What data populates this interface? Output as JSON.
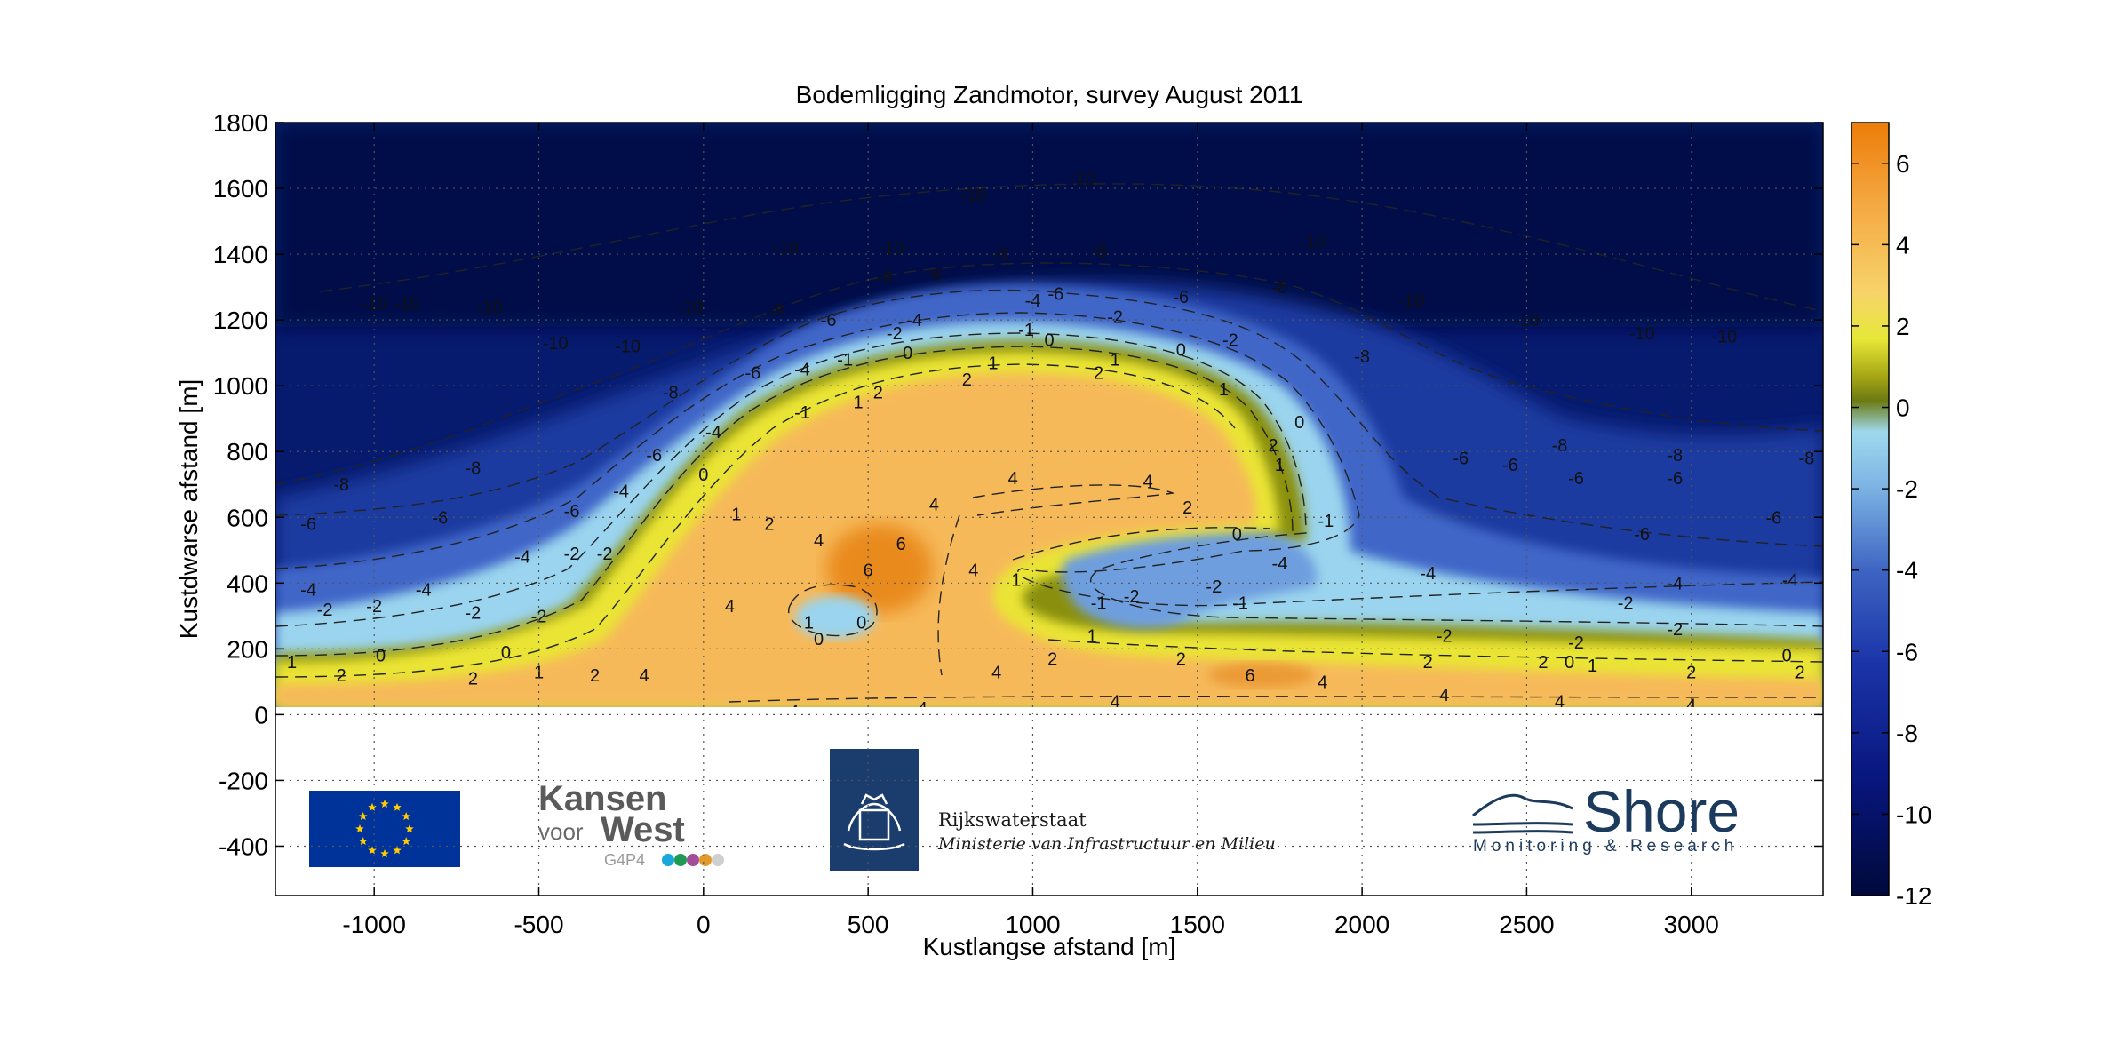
{
  "chart_data": {
    "type": "heatmap",
    "title": "Bodemligging Zandmotor, survey  August 2011",
    "xlabel": "Kustlangse afstand [m]",
    "ylabel": "Kustdwarse afstand [m]",
    "xlim": [
      -1300,
      3400
    ],
    "ylim": [
      -550,
      1800
    ],
    "xticks": [
      -1000,
      -500,
      0,
      500,
      1000,
      1500,
      2000,
      2500,
      3000
    ],
    "yticks": [
      -400,
      -200,
      0,
      200,
      400,
      600,
      800,
      1000,
      1200,
      1400,
      1600,
      1800
    ],
    "grid": "dotted",
    "colorbar": {
      "range": [
        -12,
        7
      ],
      "ticks": [
        6,
        4,
        2,
        0,
        -2,
        -4,
        -6,
        -8,
        -10,
        -12
      ],
      "colormap": [
        "#000c4a",
        "#061c8c",
        "#2a48b8",
        "#6a96d6",
        "#a6daf0",
        "#8a8a05",
        "#e8e830",
        "#f7c25e",
        "#ec8a10"
      ]
    },
    "contour_levels": [
      -10,
      -8,
      -6,
      -4,
      -2,
      -1,
      0,
      1,
      2,
      4,
      6
    ],
    "contour_labels": [
      {
        "x": -1000,
        "y": 1250,
        "v": -10
      },
      {
        "x": -900,
        "y": 1250,
        "v": -10
      },
      {
        "x": -650,
        "y": 1240,
        "v": -10
      },
      {
        "x": -450,
        "y": 1130,
        "v": -10
      },
      {
        "x": -230,
        "y": 1120,
        "v": -10
      },
      {
        "x": -40,
        "y": 1240,
        "v": -10
      },
      {
        "x": 250,
        "y": 1420,
        "v": -10
      },
      {
        "x": 570,
        "y": 1420,
        "v": -10
      },
      {
        "x": 820,
        "y": 1580,
        "v": -10
      },
      {
        "x": 1150,
        "y": 1630,
        "v": -10
      },
      {
        "x": 1850,
        "y": 1440,
        "v": -10
      },
      {
        "x": 2150,
        "y": 1260,
        "v": -10
      },
      {
        "x": 2500,
        "y": 1200,
        "v": -10
      },
      {
        "x": 2850,
        "y": 1160,
        "v": -10
      },
      {
        "x": 3100,
        "y": 1150,
        "v": -10
      },
      {
        "x": -1100,
        "y": 700,
        "v": -8
      },
      {
        "x": -700,
        "y": 750,
        "v": -8
      },
      {
        "x": -100,
        "y": 980,
        "v": -8
      },
      {
        "x": 220,
        "y": 1230,
        "v": -8
      },
      {
        "x": 550,
        "y": 1330,
        "v": -8
      },
      {
        "x": 900,
        "y": 1400,
        "v": -8
      },
      {
        "x": 1200,
        "y": 1410,
        "v": -8
      },
      {
        "x": 1750,
        "y": 1300,
        "v": -8
      },
      {
        "x": 2000,
        "y": 1090,
        "v": -8
      },
      {
        "x": 2600,
        "y": 820,
        "v": -8
      },
      {
        "x": 2950,
        "y": 790,
        "v": -8
      },
      {
        "x": 3350,
        "y": 780,
        "v": -8
      },
      {
        "x": -1200,
        "y": 580,
        "v": -6
      },
      {
        "x": -800,
        "y": 600,
        "v": -6
      },
      {
        "x": -400,
        "y": 620,
        "v": -6
      },
      {
        "x": -150,
        "y": 790,
        "v": -6
      },
      {
        "x": 150,
        "y": 1040,
        "v": -6
      },
      {
        "x": 380,
        "y": 1200,
        "v": -6
      },
      {
        "x": 700,
        "y": 1340,
        "v": -6
      },
      {
        "x": 1070,
        "y": 1280,
        "v": -6
      },
      {
        "x": 1450,
        "y": 1270,
        "v": -6
      },
      {
        "x": 2300,
        "y": 780,
        "v": -6
      },
      {
        "x": 2450,
        "y": 760,
        "v": -6
      },
      {
        "x": 2650,
        "y": 720,
        "v": -6
      },
      {
        "x": 2950,
        "y": 720,
        "v": -6
      },
      {
        "x": 3250,
        "y": 600,
        "v": -6
      },
      {
        "x": 2850,
        "y": 550,
        "v": -6
      },
      {
        "x": -1200,
        "y": 380,
        "v": -4
      },
      {
        "x": -850,
        "y": 380,
        "v": -4
      },
      {
        "x": -550,
        "y": 480,
        "v": -4
      },
      {
        "x": -250,
        "y": 680,
        "v": -4
      },
      {
        "x": 30,
        "y": 860,
        "v": -4
      },
      {
        "x": 300,
        "y": 1050,
        "v": -4
      },
      {
        "x": 640,
        "y": 1200,
        "v": -4
      },
      {
        "x": 1000,
        "y": 1260,
        "v": -4
      },
      {
        "x": 1750,
        "y": 460,
        "v": -4
      },
      {
        "x": 2200,
        "y": 430,
        "v": -4
      },
      {
        "x": 2950,
        "y": 400,
        "v": -4
      },
      {
        "x": 3300,
        "y": 410,
        "v": -4
      },
      {
        "x": -1150,
        "y": 320,
        "v": -2
      },
      {
        "x": -1000,
        "y": 330,
        "v": -2
      },
      {
        "x": -700,
        "y": 310,
        "v": -2
      },
      {
        "x": -500,
        "y": 300,
        "v": -2
      },
      {
        "x": -400,
        "y": 490,
        "v": -2
      },
      {
        "x": -300,
        "y": 490,
        "v": -2
      },
      {
        "x": 580,
        "y": 1160,
        "v": -2
      },
      {
        "x": 1250,
        "y": 1210,
        "v": -2
      },
      {
        "x": 1600,
        "y": 1140,
        "v": -2
      },
      {
        "x": 1300,
        "y": 360,
        "v": -2
      },
      {
        "x": 1550,
        "y": 390,
        "v": -2
      },
      {
        "x": 2250,
        "y": 240,
        "v": -2
      },
      {
        "x": 2800,
        "y": 340,
        "v": -2
      },
      {
        "x": 2950,
        "y": 260,
        "v": -2
      },
      {
        "x": 2650,
        "y": 220,
        "v": -2
      },
      {
        "x": 430,
        "y": 1080,
        "v": -1
      },
      {
        "x": 980,
        "y": 1170,
        "v": -1
      },
      {
        "x": 300,
        "y": 920,
        "v": -1
      },
      {
        "x": 1200,
        "y": 340,
        "v": -1
      },
      {
        "x": 1630,
        "y": 340,
        "v": -1
      },
      {
        "x": 1890,
        "y": 590,
        "v": -1
      },
      {
        "x": 0,
        "y": 730,
        "v": 0
      },
      {
        "x": 620,
        "y": 1100,
        "v": 0
      },
      {
        "x": 1050,
        "y": 1140,
        "v": 0
      },
      {
        "x": 1450,
        "y": 1110,
        "v": 0
      },
      {
        "x": 1810,
        "y": 890,
        "v": 0
      },
      {
        "x": 350,
        "y": 230,
        "v": 0
      },
      {
        "x": 480,
        "y": 280,
        "v": 0
      },
      {
        "x": 1620,
        "y": 550,
        "v": 0
      },
      {
        "x": -600,
        "y": 190,
        "v": 0
      },
      {
        "x": -980,
        "y": 180,
        "v": 0
      },
      {
        "x": 2630,
        "y": 160,
        "v": 0
      },
      {
        "x": 3290,
        "y": 180,
        "v": 0
      },
      {
        "x": 100,
        "y": 610,
        "v": 1
      },
      {
        "x": 470,
        "y": 950,
        "v": 1
      },
      {
        "x": 880,
        "y": 1070,
        "v": 1
      },
      {
        "x": 1250,
        "y": 1080,
        "v": 1
      },
      {
        "x": 1580,
        "y": 990,
        "v": 1
      },
      {
        "x": 1750,
        "y": 760,
        "v": 1
      },
      {
        "x": 320,
        "y": 280,
        "v": 1
      },
      {
        "x": 950,
        "y": 410,
        "v": 1
      },
      {
        "x": 1180,
        "y": 240,
        "v": 1
      },
      {
        "x": -1250,
        "y": 160,
        "v": 1
      },
      {
        "x": -500,
        "y": 130,
        "v": 1
      },
      {
        "x": 2700,
        "y": 150,
        "v": 1
      },
      {
        "x": 200,
        "y": 580,
        "v": 2
      },
      {
        "x": 530,
        "y": 980,
        "v": 2
      },
      {
        "x": 800,
        "y": 1020,
        "v": 2
      },
      {
        "x": 1200,
        "y": 1040,
        "v": 2
      },
      {
        "x": 1470,
        "y": 630,
        "v": 2
      },
      {
        "x": 1730,
        "y": 820,
        "v": 2
      },
      {
        "x": -1100,
        "y": 120,
        "v": 2
      },
      {
        "x": -700,
        "y": 110,
        "v": 2
      },
      {
        "x": -330,
        "y": 120,
        "v": 2
      },
      {
        "x": 1060,
        "y": 170,
        "v": 2
      },
      {
        "x": 1450,
        "y": 170,
        "v": 2
      },
      {
        "x": 2200,
        "y": 160,
        "v": 2
      },
      {
        "x": 2550,
        "y": 160,
        "v": 2
      },
      {
        "x": 3000,
        "y": 130,
        "v": 2
      },
      {
        "x": 3330,
        "y": 130,
        "v": 2
      },
      {
        "x": 940,
        "y": 720,
        "v": 4
      },
      {
        "x": 1350,
        "y": 710,
        "v": 4
      },
      {
        "x": 700,
        "y": 640,
        "v": 4
      },
      {
        "x": 350,
        "y": 530,
        "v": 4
      },
      {
        "x": 80,
        "y": 330,
        "v": 4
      },
      {
        "x": -180,
        "y": 120,
        "v": 4
      },
      {
        "x": 820,
        "y": 440,
        "v": 4
      },
      {
        "x": 890,
        "y": 130,
        "v": 4
      },
      {
        "x": 1250,
        "y": 40,
        "v": 4
      },
      {
        "x": 1880,
        "y": 100,
        "v": 4
      },
      {
        "x": 2250,
        "y": 60,
        "v": 4
      },
      {
        "x": 2600,
        "y": 40,
        "v": 4
      },
      {
        "x": 3000,
        "y": 30,
        "v": 4
      },
      {
        "x": 275,
        "y": 10,
        "v": 4
      },
      {
        "x": 665,
        "y": 20,
        "v": 4
      },
      {
        "x": 600,
        "y": 520,
        "v": 6
      },
      {
        "x": 500,
        "y": 440,
        "v": 6
      },
      {
        "x": 1660,
        "y": 120,
        "v": 6
      }
    ]
  },
  "logos": {
    "kansen_line1": "Kansen",
    "kansen_voor": "voor",
    "kansen_west": "West",
    "kansen_g4p4": "G4P4",
    "kansen_dots": [
      "#19a7dc",
      "#1f9a55",
      "#a24c9a",
      "#e39a2c",
      "#cfcfcf"
    ],
    "rws_title": "Rijkswaterstaat",
    "rws_subtitle": "Ministerie van Infrastructuur en Milieu",
    "shore_title": "Shore",
    "shore_subtitle": "Monitoring & Research",
    "eu_flag_color": "#003399",
    "eu_star_color": "#ffcc00",
    "rws_logo_color": "#1a3d6e",
    "shore_color": "#1b3a5c"
  }
}
